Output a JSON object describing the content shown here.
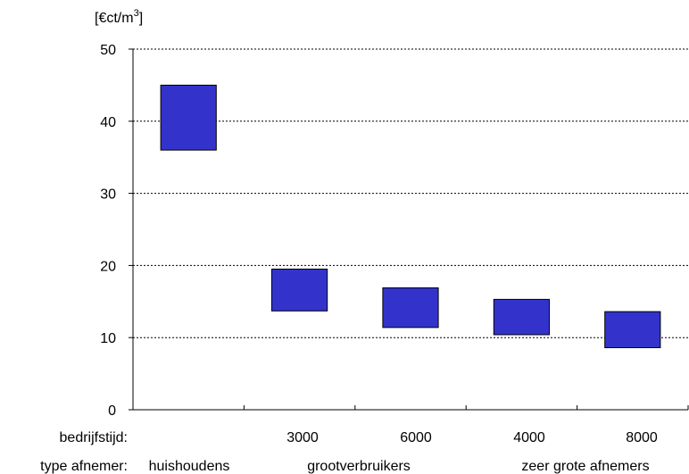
{
  "chart_data": {
    "type": "bar",
    "subtype": "floating-range",
    "ylabel_unit_prefix": "[€ct/m",
    "ylabel_unit_exp": "3",
    "ylabel_unit_suffix": "]",
    "ylim": [
      0,
      50
    ],
    "yticks": [
      0,
      10,
      20,
      30,
      40,
      50
    ],
    "grid": true,
    "categories": [
      "huishoudens",
      "3000",
      "6000",
      "4000",
      "8000"
    ],
    "ranges": [
      {
        "low": 36,
        "high": 45
      },
      {
        "low": 13.7,
        "high": 19.5
      },
      {
        "low": 11.4,
        "high": 16.9
      },
      {
        "low": 10.4,
        "high": 15.3
      },
      {
        "low": 8.6,
        "high": 13.6
      }
    ],
    "colors": {
      "box": "#3333cc",
      "grid": "#000000"
    }
  },
  "labels": {
    "bedrijfstijd_title": "bedrijfstijd:",
    "bedrijfstijd_values": [
      "3000",
      "6000",
      "4000",
      "8000"
    ],
    "type_title": "type afnemer:",
    "type_values": [
      "huishoudens",
      "grootverbruikers",
      "zeer grote afnemers"
    ]
  }
}
